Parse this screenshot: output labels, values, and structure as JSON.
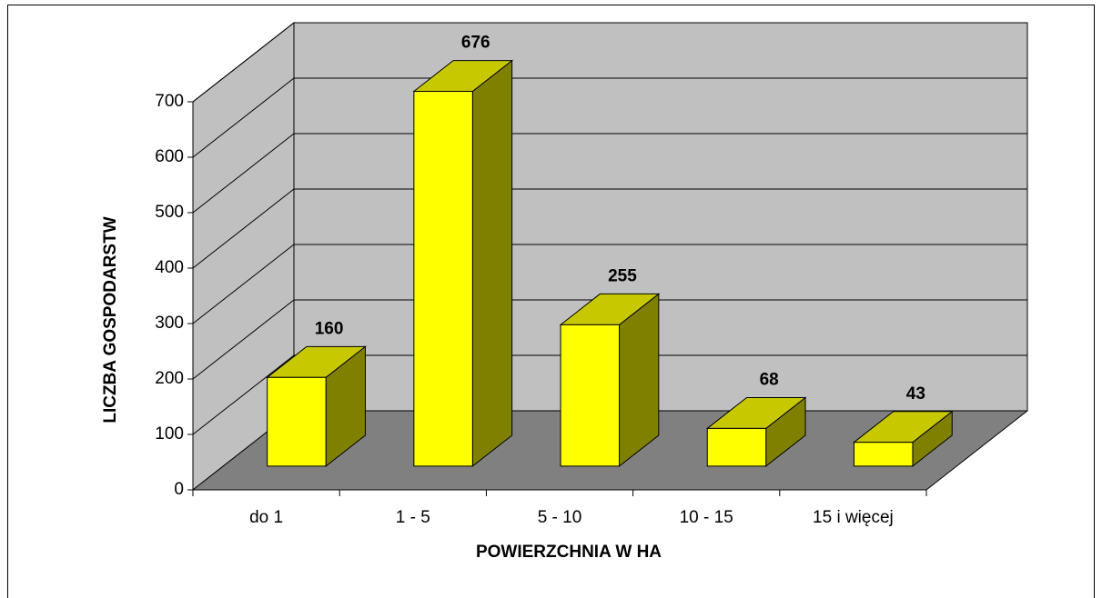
{
  "chart_data": {
    "type": "bar3d",
    "categories": [
      "do 1",
      "1 - 5",
      "5 - 10",
      "10 - 15",
      "15 i więcej"
    ],
    "values": [
      160,
      676,
      255,
      68,
      43
    ],
    "x_label": "POWIERZCHNIA W HA",
    "y_label": "LICZBA GOSPODARSTW",
    "ylim": [
      0,
      700
    ],
    "yticks": [
      0,
      100,
      200,
      300,
      400,
      500,
      600,
      700
    ],
    "grid": true,
    "color": "#ffff00",
    "top_color": "#c8c800",
    "side_color": "#808000",
    "wall_color": "#c0c0c0",
    "floor_color": "#808080"
  }
}
